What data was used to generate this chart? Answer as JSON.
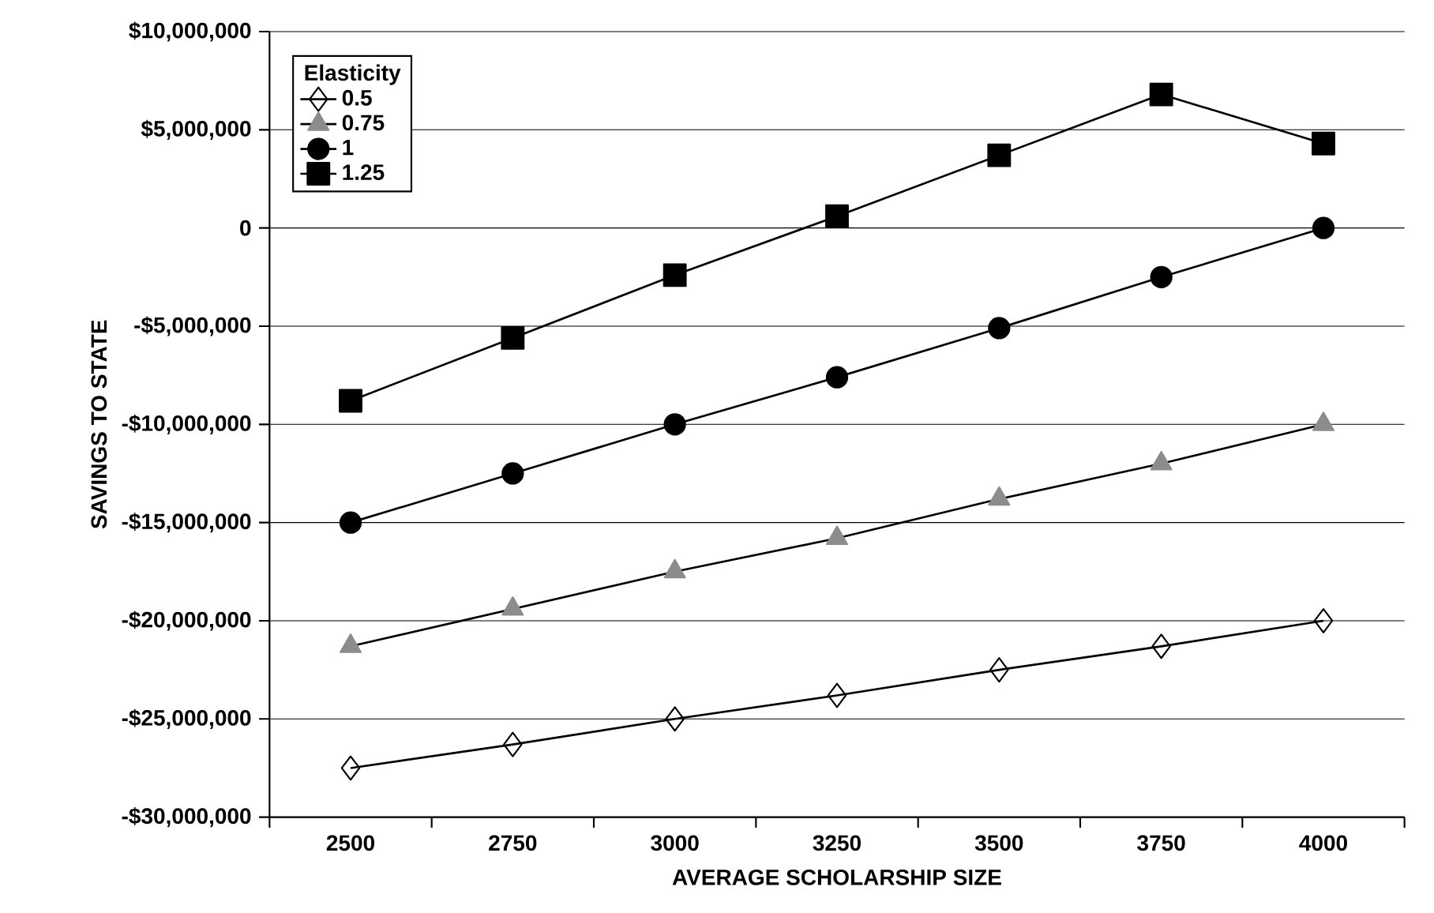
{
  "chart_data": {
    "type": "line",
    "xlabel": "AVERAGE SCHOLARSHIP SIZE",
    "ylabel": "SAVINGS TO STATE",
    "legend_title": "Elasticity",
    "categories": [
      "2500",
      "2750",
      "3000",
      "3250",
      "3500",
      "3750",
      "4000"
    ],
    "series": [
      {
        "name": "0.5",
        "color": "#000000",
        "marker": "diamond",
        "values": [
          -27500000,
          -26300000,
          -25000000,
          -23800000,
          -22500000,
          -21300000,
          -20000000
        ]
      },
      {
        "name": "0.75",
        "color": "#8c8c8c",
        "marker": "triangle",
        "values": [
          -21300000,
          -19400000,
          -17500000,
          -15800000,
          -13800000,
          -12000000,
          -10000000
        ]
      },
      {
        "name": "1",
        "color": "#000000",
        "marker": "circle",
        "values": [
          -15000000,
          -12500000,
          -10000000,
          -7600000,
          -5100000,
          -2500000,
          0
        ]
      },
      {
        "name": "1.25",
        "color": "#000000",
        "marker": "square",
        "values": [
          -8800000,
          -5600000,
          -2400000,
          600000,
          3700000,
          6800000,
          4300000
        ]
      }
    ],
    "ylim": [
      -30000000,
      10000000
    ],
    "yticks": [
      {
        "value": -30000000,
        "label": "-$30,000,000"
      },
      {
        "value": -25000000,
        "label": "-$25,000,000"
      },
      {
        "value": -20000000,
        "label": "-$20,000,000"
      },
      {
        "value": -15000000,
        "label": "-$15,000,000"
      },
      {
        "value": -10000000,
        "label": "-$10,000,000"
      },
      {
        "value": -5000000,
        "label": "-$5,000,000"
      },
      0,
      {
        "value": 5000000,
        "label": "$5,000,000"
      },
      {
        "value": 10000000,
        "label": "$10,000,000"
      }
    ],
    "grid": "y",
    "legend": "top left",
    "line_style": "solid"
  }
}
